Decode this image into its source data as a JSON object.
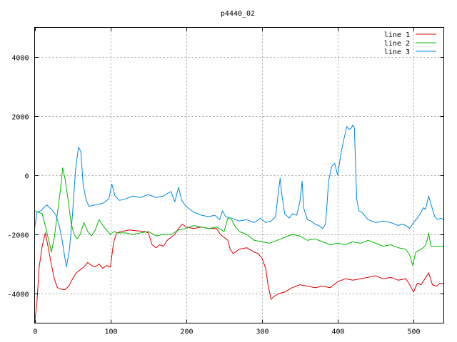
{
  "chart_data": {
    "type": "line",
    "title": "p4440_02",
    "xlabel": "",
    "ylabel": "",
    "xlim": [
      0,
      540
    ],
    "ylim": [
      -5000,
      5000
    ],
    "x_ticks": [
      0,
      100,
      200,
      300,
      400,
      500
    ],
    "y_ticks": [
      -4000,
      -2000,
      0,
      2000,
      4000
    ],
    "grid": true,
    "legend_position": "top-right",
    "series": [
      {
        "name": "line 1",
        "color": "#dd0000",
        "points": [
          [
            0,
            -5000
          ],
          [
            3,
            -4300
          ],
          [
            6,
            -3100
          ],
          [
            10,
            -2400
          ],
          [
            14,
            -1950
          ],
          [
            18,
            -2450
          ],
          [
            22,
            -3000
          ],
          [
            26,
            -3500
          ],
          [
            30,
            -3800
          ],
          [
            35,
            -3850
          ],
          [
            40,
            -3870
          ],
          [
            45,
            -3750
          ],
          [
            50,
            -3500
          ],
          [
            55,
            -3300
          ],
          [
            60,
            -3200
          ],
          [
            65,
            -3100
          ],
          [
            70,
            -2950
          ],
          [
            75,
            -3050
          ],
          [
            80,
            -3100
          ],
          [
            85,
            -3000
          ],
          [
            90,
            -3150
          ],
          [
            95,
            -3050
          ],
          [
            100,
            -3100
          ],
          [
            104,
            -2300
          ],
          [
            108,
            -1950
          ],
          [
            115,
            -1900
          ],
          [
            125,
            -1850
          ],
          [
            135,
            -1880
          ],
          [
            145,
            -1900
          ],
          [
            150,
            -1950
          ],
          [
            155,
            -2350
          ],
          [
            160,
            -2450
          ],
          [
            165,
            -2350
          ],
          [
            170,
            -2400
          ],
          [
            175,
            -2200
          ],
          [
            180,
            -2100
          ],
          [
            185,
            -2000
          ],
          [
            190,
            -1800
          ],
          [
            195,
            -1650
          ],
          [
            200,
            -1750
          ],
          [
            210,
            -1800
          ],
          [
            220,
            -1750
          ],
          [
            230,
            -1800
          ],
          [
            240,
            -1800
          ],
          [
            245,
            -2000
          ],
          [
            250,
            -2100
          ],
          [
            255,
            -2200
          ],
          [
            258,
            -2500
          ],
          [
            262,
            -2650
          ],
          [
            270,
            -2500
          ],
          [
            280,
            -2450
          ],
          [
            290,
            -2600
          ],
          [
            295,
            -2650
          ],
          [
            300,
            -2800
          ],
          [
            305,
            -3150
          ],
          [
            308,
            -3700
          ],
          [
            312,
            -4200
          ],
          [
            316,
            -4100
          ],
          [
            322,
            -4000
          ],
          [
            330,
            -3950
          ],
          [
            340,
            -3800
          ],
          [
            350,
            -3700
          ],
          [
            360,
            -3750
          ],
          [
            370,
            -3800
          ],
          [
            380,
            -3750
          ],
          [
            390,
            -3800
          ],
          [
            400,
            -3600
          ],
          [
            410,
            -3500
          ],
          [
            420,
            -3550
          ],
          [
            430,
            -3500
          ],
          [
            440,
            -3450
          ],
          [
            450,
            -3400
          ],
          [
            460,
            -3500
          ],
          [
            470,
            -3450
          ],
          [
            480,
            -3550
          ],
          [
            490,
            -3500
          ],
          [
            495,
            -3700
          ],
          [
            500,
            -3950
          ],
          [
            505,
            -3650
          ],
          [
            510,
            -3700
          ],
          [
            515,
            -3500
          ],
          [
            520,
            -3300
          ],
          [
            525,
            -3700
          ],
          [
            530,
            -3750
          ],
          [
            535,
            -3650
          ],
          [
            540,
            -3650
          ]
        ]
      },
      {
        "name": "line 2",
        "color": "#00bb00",
        "points": [
          [
            0,
            -1200
          ],
          [
            5,
            -1250
          ],
          [
            10,
            -1300
          ],
          [
            15,
            -1800
          ],
          [
            20,
            -2350
          ],
          [
            22,
            -2600
          ],
          [
            26,
            -2100
          ],
          [
            30,
            -1300
          ],
          [
            34,
            -500
          ],
          [
            37,
            250
          ],
          [
            40,
            -100
          ],
          [
            44,
            -800
          ],
          [
            48,
            -1600
          ],
          [
            52,
            -2000
          ],
          [
            56,
            -2150
          ],
          [
            60,
            -2000
          ],
          [
            65,
            -1600
          ],
          [
            70,
            -1900
          ],
          [
            75,
            -2050
          ],
          [
            80,
            -1850
          ],
          [
            85,
            -1500
          ],
          [
            90,
            -1700
          ],
          [
            95,
            -1850
          ],
          [
            100,
            -2000
          ],
          [
            105,
            -1900
          ],
          [
            110,
            -1950
          ],
          [
            120,
            -1950
          ],
          [
            130,
            -2000
          ],
          [
            140,
            -1950
          ],
          [
            150,
            -1900
          ],
          [
            160,
            -2050
          ],
          [
            170,
            -2000
          ],
          [
            180,
            -2000
          ],
          [
            190,
            -1850
          ],
          [
            200,
            -1800
          ],
          [
            210,
            -1700
          ],
          [
            220,
            -1750
          ],
          [
            230,
            -1800
          ],
          [
            240,
            -1750
          ],
          [
            250,
            -1900
          ],
          [
            255,
            -1450
          ],
          [
            260,
            -1500
          ],
          [
            265,
            -1750
          ],
          [
            270,
            -1900
          ],
          [
            280,
            -2000
          ],
          [
            290,
            -2200
          ],
          [
            300,
            -2250
          ],
          [
            310,
            -2300
          ],
          [
            320,
            -2200
          ],
          [
            330,
            -2100
          ],
          [
            340,
            -2000
          ],
          [
            350,
            -2050
          ],
          [
            360,
            -2200
          ],
          [
            370,
            -2150
          ],
          [
            380,
            -2250
          ],
          [
            390,
            -2350
          ],
          [
            400,
            -2300
          ],
          [
            410,
            -2350
          ],
          [
            420,
            -2250
          ],
          [
            430,
            -2300
          ],
          [
            440,
            -2200
          ],
          [
            450,
            -2300
          ],
          [
            460,
            -2400
          ],
          [
            470,
            -2350
          ],
          [
            480,
            -2450
          ],
          [
            490,
            -2500
          ],
          [
            495,
            -2700
          ],
          [
            499,
            -3050
          ],
          [
            503,
            -2600
          ],
          [
            510,
            -2500
          ],
          [
            515,
            -2400
          ],
          [
            518,
            -2200
          ],
          [
            520,
            -1950
          ],
          [
            523,
            -2400
          ],
          [
            530,
            -2400
          ],
          [
            540,
            -2400
          ]
        ]
      },
      {
        "name": "line 3",
        "color": "#0088dd",
        "points": [
          [
            0,
            -1800
          ],
          [
            3,
            -1250
          ],
          [
            8,
            -1200
          ],
          [
            12,
            -1100
          ],
          [
            16,
            -1000
          ],
          [
            20,
            -1100
          ],
          [
            24,
            -1200
          ],
          [
            28,
            -1350
          ],
          [
            32,
            -1650
          ],
          [
            36,
            -2150
          ],
          [
            40,
            -2800
          ],
          [
            42,
            -3100
          ],
          [
            46,
            -2500
          ],
          [
            50,
            -1300
          ],
          [
            54,
            200
          ],
          [
            58,
            950
          ],
          [
            61,
            800
          ],
          [
            64,
            -300
          ],
          [
            68,
            -850
          ],
          [
            72,
            -1050
          ],
          [
            80,
            -1000
          ],
          [
            90,
            -950
          ],
          [
            98,
            -800
          ],
          [
            102,
            -300
          ],
          [
            106,
            -700
          ],
          [
            112,
            -850
          ],
          [
            120,
            -800
          ],
          [
            130,
            -700
          ],
          [
            140,
            -750
          ],
          [
            150,
            -650
          ],
          [
            160,
            -750
          ],
          [
            170,
            -700
          ],
          [
            180,
            -550
          ],
          [
            185,
            -900
          ],
          [
            190,
            -400
          ],
          [
            194,
            -850
          ],
          [
            200,
            -1050
          ],
          [
            210,
            -1250
          ],
          [
            220,
            -1350
          ],
          [
            230,
            -1400
          ],
          [
            238,
            -1350
          ],
          [
            244,
            -1500
          ],
          [
            248,
            -1200
          ],
          [
            252,
            -1400
          ],
          [
            260,
            -1450
          ],
          [
            270,
            -1550
          ],
          [
            280,
            -1500
          ],
          [
            290,
            -1600
          ],
          [
            298,
            -1450
          ],
          [
            305,
            -1600
          ],
          [
            312,
            -1550
          ],
          [
            318,
            -1400
          ],
          [
            322,
            -500
          ],
          [
            324,
            -100
          ],
          [
            326,
            -600
          ],
          [
            330,
            -1300
          ],
          [
            336,
            -1450
          ],
          [
            340,
            -1300
          ],
          [
            346,
            -1350
          ],
          [
            350,
            -900
          ],
          [
            353,
            -200
          ],
          [
            355,
            -1100
          ],
          [
            360,
            -1500
          ],
          [
            365,
            -1550
          ],
          [
            370,
            -1650
          ],
          [
            375,
            -1700
          ],
          [
            380,
            -1800
          ],
          [
            384,
            -1650
          ],
          [
            388,
            -200
          ],
          [
            392,
            300
          ],
          [
            396,
            400
          ],
          [
            400,
            0
          ],
          [
            404,
            700
          ],
          [
            408,
            1200
          ],
          [
            412,
            1650
          ],
          [
            415,
            1550
          ],
          [
            418,
            1600
          ],
          [
            420,
            1700
          ],
          [
            422,
            1600
          ],
          [
            425,
            -800
          ],
          [
            428,
            -1200
          ],
          [
            432,
            -1250
          ],
          [
            440,
            -1500
          ],
          [
            450,
            -1600
          ],
          [
            460,
            -1550
          ],
          [
            470,
            -1600
          ],
          [
            480,
            -1700
          ],
          [
            485,
            -1650
          ],
          [
            490,
            -1700
          ],
          [
            495,
            -1800
          ],
          [
            500,
            -1600
          ],
          [
            505,
            -1450
          ],
          [
            510,
            -1250
          ],
          [
            513,
            -1100
          ],
          [
            516,
            -1150
          ],
          [
            520,
            -700
          ],
          [
            524,
            -1050
          ],
          [
            528,
            -1400
          ],
          [
            532,
            -1500
          ],
          [
            536,
            -1450
          ],
          [
            540,
            -1500
          ]
        ]
      }
    ]
  }
}
